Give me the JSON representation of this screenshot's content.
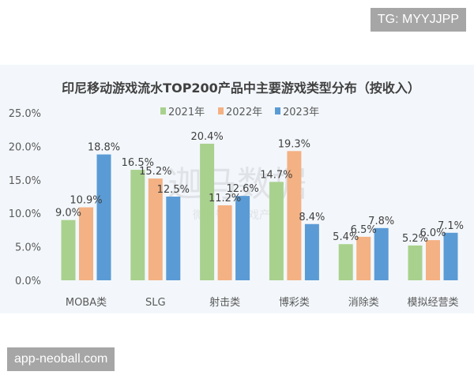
{
  "watermarks": {
    "top_right": "TG: MYYJJPP",
    "bottom_left": "app-neoball.com",
    "center_logo": "迦马数据",
    "center_sub": "微信号：游戏产业"
  },
  "chart_data": {
    "type": "bar",
    "title": "印尼移动游戏流水TOP200产品中主要游戏类型分布（按收入）",
    "categories": [
      "MOBA类",
      "SLG",
      "射击类",
      "博彩类",
      "消除类",
      "模拟经营类"
    ],
    "series": [
      {
        "name": "2021年",
        "color": "#a9d18e",
        "values": [
          9.0,
          16.5,
          20.4,
          14.7,
          5.4,
          5.2
        ]
      },
      {
        "name": "2022年",
        "color": "#f4b183",
        "values": [
          10.9,
          15.2,
          11.2,
          19.3,
          6.5,
          6.0
        ]
      },
      {
        "name": "2023年",
        "color": "#5b9bd5",
        "values": [
          18.8,
          12.5,
          12.6,
          8.4,
          7.8,
          7.1
        ]
      }
    ],
    "yticks": [
      "0.0%",
      "5.0%",
      "10.0%",
      "15.0%",
      "20.0%",
      "25.0%"
    ],
    "ylim": [
      0,
      25
    ],
    "xlabel": "",
    "ylabel": "",
    "grid": false,
    "legend_position": "top-center"
  }
}
